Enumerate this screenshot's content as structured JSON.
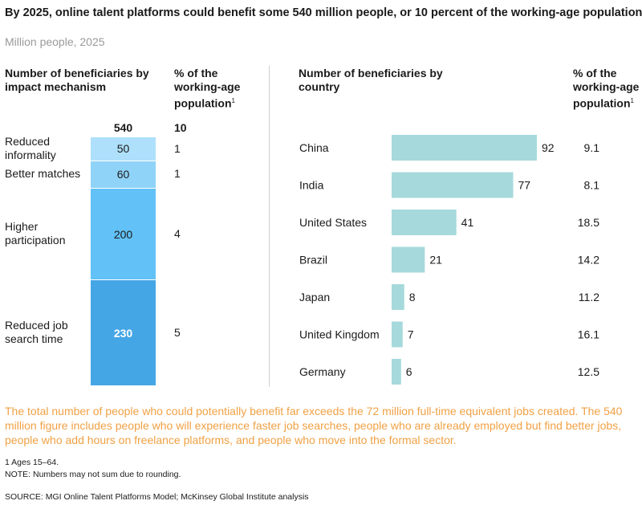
{
  "title": "By 2025, online talent platforms could benefit some 540 million people, or 10 percent of the working-age population",
  "subtitle": "Million people, 2025",
  "left_panel": {
    "header_beneficiaries": "Number of beneficiaries by impact mechanism",
    "header_pct_l1": "% of the",
    "header_pct_l2": "working-age",
    "header_pct_l3": "population",
    "header_pct_sup": "1",
    "total_value": "540",
    "total_pct": "10",
    "mechanisms": [
      {
        "label_l1": "Reduced",
        "label_l2": "informality",
        "value": "50",
        "pct": "1",
        "color": "#aee0fb"
      },
      {
        "label_l1": "Better matches",
        "label_l2": "",
        "value": "60",
        "pct": "1",
        "color": "#8fd3f8"
      },
      {
        "label_l1": "Higher",
        "label_l2": "participation",
        "value": "200",
        "pct": "4",
        "color": "#62c1f6"
      },
      {
        "label_l1": "Reduced job",
        "label_l2": "search time",
        "value": "230",
        "pct": "5",
        "color": "#45a6e6"
      }
    ]
  },
  "right_panel": {
    "header_beneficiaries": "Number of beneficiaries by country",
    "header_pct_l1": "% of the",
    "header_pct_l2": "working-age",
    "header_pct_l3": "population",
    "header_pct_sup": "1",
    "bar_color": "#a6d9db"
  },
  "chart_data": {
    "type": "bar",
    "orientation": "horizontal",
    "categories": [
      "China",
      "India",
      "United States",
      "Brazil",
      "Japan",
      "United Kingdom",
      "Germany"
    ],
    "values": [
      92,
      77,
      41,
      21,
      8,
      7,
      6
    ],
    "pct_working_age": [
      "9.1",
      "8.1",
      "18.5",
      "14.2",
      "11.2",
      "16.1",
      "12.5"
    ],
    "unit": "Million people"
  },
  "note_text": "The total number of people who could potentially benefit far exceeds the 72 million full-time equivalent jobs created. The 540 million figure includes people who will experience faster job searches, people who are already employed but find better jobs, people who add hours on freelance platforms, and people who move into the formal sector.",
  "footnote_1": "1  Ages 15–64.",
  "footnote_note": "NOTE: Numbers may not sum due to rounding.",
  "source": "SOURCE:  MGI Online Talent Platforms Model; McKinsey Global Institute analysis"
}
